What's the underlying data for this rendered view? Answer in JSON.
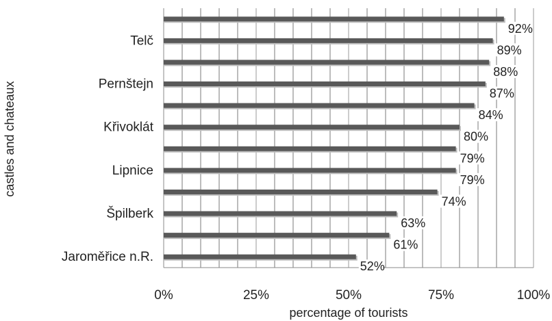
{
  "chart_data": {
    "type": "bar",
    "orientation": "horizontal",
    "title": "",
    "xlabel": "percentage of tourists",
    "ylabel": "castles and chateaux",
    "xlim": [
      0,
      100
    ],
    "x_ticks": [
      "0%",
      "25%",
      "50%",
      "75%",
      "100%"
    ],
    "grid": true,
    "categories": [
      "",
      "Telč",
      "",
      "Pernštejn",
      "",
      "Křivoklát",
      "",
      "Lipnice",
      "",
      "Špilberk",
      "",
      "Jaroměřice n.R."
    ],
    "values": [
      92,
      89,
      88,
      87,
      84,
      80,
      79,
      79,
      74,
      63,
      61,
      52
    ],
    "data_labels": [
      "92%",
      "89%",
      "88%",
      "87%",
      "84%",
      "80%",
      "79%",
      "79%",
      "74%",
      "63%",
      "61%",
      "52%"
    ],
    "bar_color": "#595959"
  }
}
